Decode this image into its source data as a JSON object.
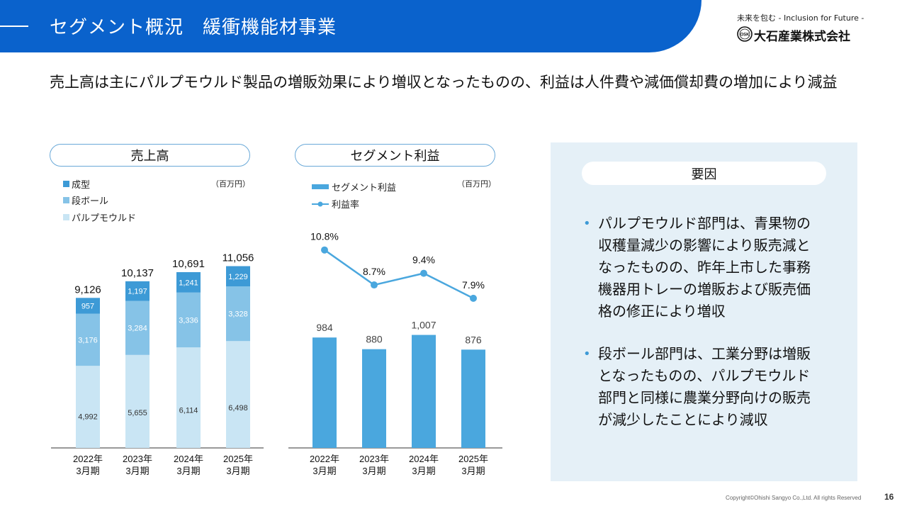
{
  "header": {
    "title": "セグメント概況　緩衝機能材事業"
  },
  "logo": {
    "tagline": "未来を包む - Inclusion for Future -",
    "mark_text": "OSK",
    "company": "大石産業株式会社"
  },
  "summary": "売上高は主にパルプモウルド製品の増販効果により増収となったものの、利益は人件費や減価償却費の増加により減益",
  "sales_panel": {
    "title": "売上高",
    "unit": "（百万円）"
  },
  "profit_panel": {
    "title": "セグメント利益",
    "unit": "（百万円）"
  },
  "factors": {
    "title": "要因",
    "bullets": [
      "パルプモウルド部門は、青果物の収穫量減少の影響により販売減となったものの、昨年上市した事務機器用トレーの増販および販売価格の修正により増収",
      "段ボール部門は、工業分野は増販となったものの、パルプモウルド部門と同様に農業分野向けの販売が減少したことにより減収"
    ]
  },
  "footer": {
    "copyright": "Copyright©Ohishi Sangyo Co.,Ltd. All rights Reserved",
    "page": "16"
  },
  "colors": {
    "header": "#0a62cc",
    "molded": "#3d9ad6",
    "corrugated": "#86c3e7",
    "pulp": "#c9e5f4",
    "profit_bar": "#4aa7de",
    "profit_line": "#4aa7de"
  },
  "chart_data": [
    {
      "type": "bar",
      "stacked": true,
      "categories": [
        "2022年\n3月期",
        "2023年\n3月期",
        "2024年\n3月期",
        "2025年\n3月期"
      ],
      "series": [
        {
          "name": "パルプモウルド",
          "values": [
            "4,992",
            "5,655",
            "6,114",
            "6,498"
          ],
          "color": "#c9e5f4"
        },
        {
          "name": "段ボール",
          "values": [
            "3,176",
            "3,284",
            "3,336",
            "3,328"
          ],
          "color": "#86c3e7"
        },
        {
          "name": "成型",
          "values": [
            "957",
            "1,197",
            "1,241",
            "1,229"
          ],
          "color": "#3d9ad6"
        }
      ],
      "totals": [
        "9,126",
        "10,137",
        "10,691",
        "11,056"
      ],
      "legend_order": [
        "成型",
        "段ボール",
        "パルプモウルド"
      ],
      "legend_placement": "top-left",
      "unit": "（百万円）",
      "ylim": [
        0,
        12500
      ],
      "grid": false
    },
    {
      "type": "bar",
      "categories": [
        "2022年\n3月期",
        "2023年\n3月期",
        "2024年\n3月期",
        "2025年\n3月期"
      ],
      "series": [
        {
          "name": "セグメント利益",
          "values": [
            "984",
            "880",
            "1,007",
            "876"
          ],
          "kind": "bar",
          "color": "#4aa7de"
        },
        {
          "name": "利益率",
          "values": [
            "10.8%",
            "8.7%",
            "9.4%",
            "7.9%"
          ],
          "kind": "line",
          "color": "#4aa7de"
        }
      ],
      "legend_placement": "top-left",
      "unit": "（百万円）",
      "ylim": [
        0,
        1200
      ],
      "line_ylim": [
        0,
        15
      ],
      "grid": false
    }
  ]
}
